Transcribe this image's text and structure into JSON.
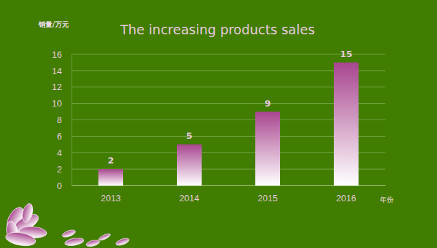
{
  "chart_data": {
    "type": "bar",
    "title": "The increasing products sales",
    "y_label": "销量/万元",
    "x_label": "年份",
    "categories": [
      "2013",
      "2014",
      "2015",
      "2016"
    ],
    "values": [
      2,
      5,
      9,
      15
    ],
    "color": "#a8468f",
    "ylim": [
      0,
      16
    ],
    "yticks": [
      0,
      2,
      4,
      6,
      8,
      10,
      12,
      14,
      16
    ],
    "grid": true,
    "data_labels": true
  }
}
